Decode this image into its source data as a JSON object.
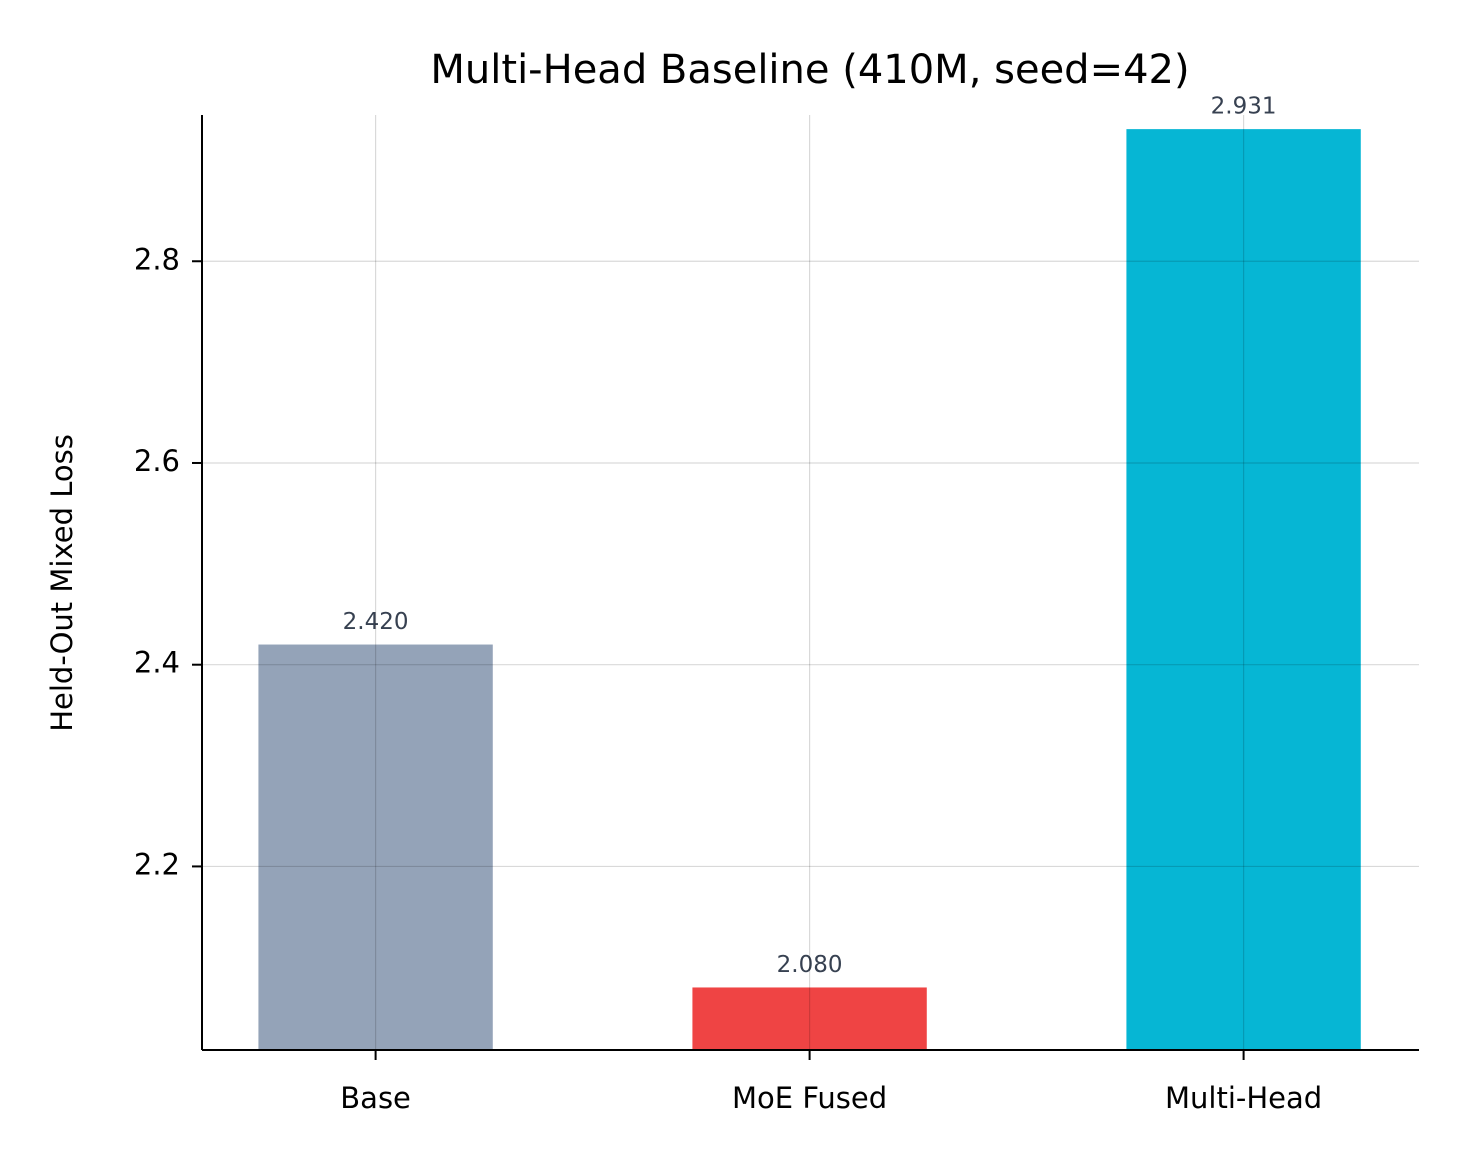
{
  "chart_data": {
    "type": "bar",
    "title": "Multi-Head Baseline (410M, seed=42)",
    "y_label": "Held-Out Mixed Loss",
    "categories": [
      "Base",
      "MoE Fused",
      "Multi-Head"
    ],
    "values": [
      2.42,
      2.08,
      2.931
    ],
    "value_labels": [
      "2.420",
      "2.080",
      "2.931"
    ],
    "colors": [
      "#94a3b8",
      "#ef4444",
      "#06b6d4"
    ],
    "ylim": [
      2.018,
      2.945
    ],
    "yticks": [
      2.2,
      2.4,
      2.6,
      2.8
    ],
    "grid": true
  }
}
